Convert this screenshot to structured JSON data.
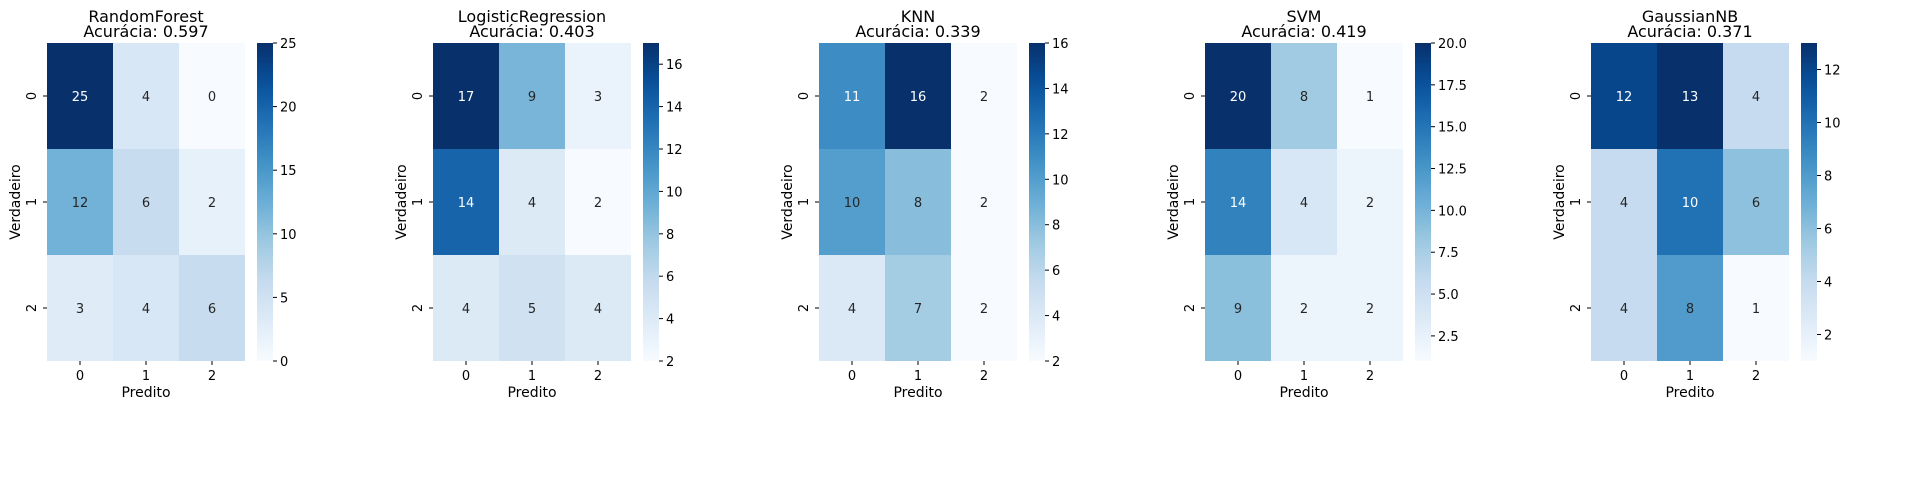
{
  "chart_data": [
    {
      "type": "heatmap",
      "title": "RandomForest",
      "subtitle": "Acurácia: 0.597",
      "xlabel": "Predito",
      "ylabel": "Verdadeiro",
      "x_categories": [
        "0",
        "1",
        "2"
      ],
      "y_categories": [
        "0",
        "1",
        "2"
      ],
      "values": [
        [
          25,
          4,
          0
        ],
        [
          12,
          6,
          2
        ],
        [
          3,
          4,
          6
        ]
      ],
      "colorbar": {
        "min": 0,
        "max": 25,
        "ticks": [
          "0",
          "5",
          "10",
          "15",
          "20",
          "25"
        ]
      }
    },
    {
      "type": "heatmap",
      "title": "LogisticRegression",
      "subtitle": "Acurácia: 0.403",
      "xlabel": "Predito",
      "ylabel": "Verdadeiro",
      "x_categories": [
        "0",
        "1",
        "2"
      ],
      "y_categories": [
        "0",
        "1",
        "2"
      ],
      "values": [
        [
          17,
          9,
          3
        ],
        [
          14,
          4,
          2
        ],
        [
          4,
          5,
          4
        ]
      ],
      "colorbar": {
        "min": 2,
        "max": 17,
        "ticks": [
          "2",
          "4",
          "6",
          "8",
          "10",
          "12",
          "14",
          "16"
        ]
      }
    },
    {
      "type": "heatmap",
      "title": "KNN",
      "subtitle": "Acurácia: 0.339",
      "xlabel": "Predito",
      "ylabel": "Verdadeiro",
      "x_categories": [
        "0",
        "1",
        "2"
      ],
      "y_categories": [
        "0",
        "1",
        "2"
      ],
      "values": [
        [
          11,
          16,
          2
        ],
        [
          10,
          8,
          2
        ],
        [
          4,
          7,
          2
        ]
      ],
      "colorbar": {
        "min": 2,
        "max": 16,
        "ticks": [
          "2",
          "4",
          "6",
          "8",
          "10",
          "12",
          "14",
          "16"
        ]
      }
    },
    {
      "type": "heatmap",
      "title": "SVM",
      "subtitle": "Acurácia: 0.419",
      "xlabel": "Predito",
      "ylabel": "Verdadeiro",
      "x_categories": [
        "0",
        "1",
        "2"
      ],
      "y_categories": [
        "0",
        "1",
        "2"
      ],
      "values": [
        [
          20,
          8,
          1
        ],
        [
          14,
          4,
          2
        ],
        [
          9,
          2,
          2
        ]
      ],
      "colorbar": {
        "min": 1,
        "max": 20,
        "ticks": [
          "2.5",
          "5.0",
          "7.5",
          "10.0",
          "12.5",
          "15.0",
          "17.5",
          "20.0"
        ]
      }
    },
    {
      "type": "heatmap",
      "title": "GaussianNB",
      "subtitle": "Acurácia: 0.371",
      "xlabel": "Predito",
      "ylabel": "Verdadeiro",
      "x_categories": [
        "0",
        "1",
        "2"
      ],
      "y_categories": [
        "0",
        "1",
        "2"
      ],
      "values": [
        [
          12,
          13,
          4
        ],
        [
          4,
          10,
          6
        ],
        [
          4,
          8,
          1
        ]
      ],
      "colorbar": {
        "min": 1,
        "max": 13,
        "ticks": [
          "2",
          "4",
          "6",
          "8",
          "10",
          "12"
        ]
      }
    }
  ],
  "colormap": {
    "name": "Blues",
    "stops": [
      "#f7fbff",
      "#deebf7",
      "#c6dbef",
      "#9ecae1",
      "#6baed6",
      "#4292c6",
      "#2171b5",
      "#08519c",
      "#08306b"
    ]
  }
}
